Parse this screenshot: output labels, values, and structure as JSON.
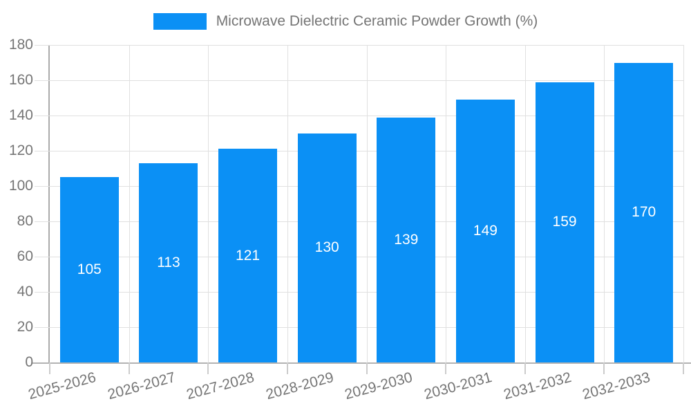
{
  "legend": {
    "label": "Microwave Dielectric Ceramic Powder Growth (%)"
  },
  "chart_data": {
    "type": "bar",
    "title": "Microwave Dielectric Ceramic Powder Growth (%)",
    "series_name": "Microwave Dielectric Ceramic Powder Growth (%)",
    "categories": [
      "2025-2026",
      "2026-2027",
      "2027-2028",
      "2028-2029",
      "2029-2030",
      "2030-2031",
      "2031-2032",
      "2032-2033"
    ],
    "values": [
      105,
      113,
      121,
      130,
      139,
      149,
      159,
      170
    ],
    "xlabel": "",
    "ylabel": "",
    "ylim": [
      0,
      180
    ],
    "yticks": [
      0,
      20,
      40,
      60,
      80,
      100,
      120,
      140,
      160,
      180
    ],
    "grid": true,
    "legend_position": "top-center",
    "x_label_rotation_deg": -15,
    "colors": {
      "bar": "#0b90f5",
      "bar_value_text": "#ffffff",
      "axis_text": "#757575",
      "gridline": "#e0e0e0",
      "axis_line": "#b0b0b0",
      "background": "#ffffff"
    }
  }
}
